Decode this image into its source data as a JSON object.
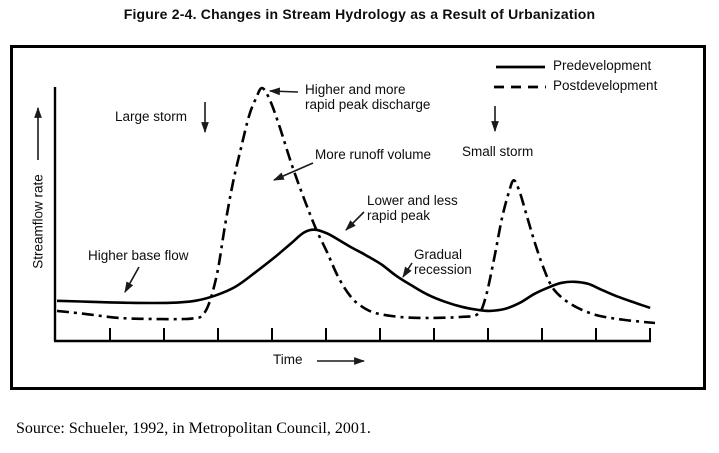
{
  "figure": {
    "title": "Figure 2-4. Changes in Stream Hydrology as a Result of Urbanization"
  },
  "source": "Source: Schueler, 1992, in Metropolitan Council, 2001.",
  "axes": {
    "y_label": "Streamflow rate",
    "x_label": "Time",
    "ticks_labeled": false
  },
  "legend": [
    {
      "label": "Predevelopment",
      "style": "solid",
      "color": "#000000"
    },
    {
      "label": "Postdevelopment",
      "style": "dashed",
      "color": "#000000"
    }
  ],
  "annotations": {
    "large_storm": "Large storm",
    "higher_peak_line1": "Higher and more",
    "higher_peak_line2": "rapid peak discharge",
    "more_runoff": "More runoff volume",
    "lower_peak_line1": "Lower and less",
    "lower_peak_line2": "rapid peak",
    "gradual_line1": "Gradual",
    "gradual_line2": "recession",
    "small_storm": "Small storm",
    "higher_base_flow": "Higher base flow"
  },
  "arrow_indicators": {
    "streamflow_axis_arrow": "up",
    "time_axis_arrow": "right",
    "large_storm_arrow": "down",
    "small_storm_arrow": "down",
    "peak_discharge_pointer": "left-to-dashed-peak",
    "more_runoff_pointer": "down-left",
    "lower_peak_pointer": "down-left",
    "gradual_recession_pointer": "down-left",
    "higher_base_flow_pointer": "down-left"
  },
  "chart_data": {
    "type": "line",
    "title": "Changes in Stream Hydrology as a Result of Urbanization",
    "xlabel": "Time",
    "ylabel": "Streamflow rate",
    "x_units": "relative time 0-100 (axis unlabeled)",
    "y_units": "relative streamflow 0-100 (axis unlabeled; 100 = postdevelopment large-storm peak)",
    "xlim": [
      0,
      100
    ],
    "ylim": [
      0,
      110
    ],
    "grid": false,
    "legend_position": "top-right",
    "x_tick_count": 11,
    "annotations": [
      "Large storm",
      "Small storm",
      "Higher and more rapid peak discharge",
      "More runoff volume",
      "Lower and less rapid peak",
      "Gradual recession",
      "Higher base flow"
    ],
    "series": [
      {
        "name": "Predevelopment",
        "style": "solid",
        "points": [
          [
            0,
            15.9
          ],
          [
            5.5,
            15.5
          ],
          [
            12.2,
            15.1
          ],
          [
            18.9,
            15.1
          ],
          [
            23.1,
            15.9
          ],
          [
            26.4,
            17.9
          ],
          [
            29.8,
            21.4
          ],
          [
            33.1,
            27.0
          ],
          [
            36.5,
            33.3
          ],
          [
            39.3,
            38.9
          ],
          [
            41.3,
            42.9
          ],
          [
            43.1,
            44.0
          ],
          [
            45.2,
            42.5
          ],
          [
            47.3,
            39.7
          ],
          [
            49.3,
            36.9
          ],
          [
            51.5,
            34.1
          ],
          [
            54.3,
            30.2
          ],
          [
            56.7,
            25.8
          ],
          [
            59.4,
            21.8
          ],
          [
            62.0,
            18.3
          ],
          [
            64.9,
            15.5
          ],
          [
            67.7,
            13.5
          ],
          [
            70.4,
            12.3
          ],
          [
            72.4,
            11.9
          ],
          [
            74.9,
            12.7
          ],
          [
            77.4,
            15.1
          ],
          [
            79.9,
            18.7
          ],
          [
            82.4,
            21.4
          ],
          [
            84.4,
            23.0
          ],
          [
            86.5,
            23.4
          ],
          [
            88.8,
            22.6
          ],
          [
            91.1,
            20.2
          ],
          [
            93.8,
            17.5
          ],
          [
            96.7,
            15.1
          ],
          [
            99.2,
            13.1
          ]
        ]
      },
      {
        "name": "Postdevelopment",
        "style": "dashed",
        "points": [
          [
            0,
            11.9
          ],
          [
            4.7,
            10.7
          ],
          [
            10.5,
            9.1
          ],
          [
            16.4,
            8.7
          ],
          [
            21.4,
            8.7
          ],
          [
            23.1,
            9.1
          ],
          [
            24.2,
            9.9
          ],
          [
            25.4,
            14.7
          ],
          [
            26.8,
            27.0
          ],
          [
            28.1,
            45.6
          ],
          [
            29.4,
            62.3
          ],
          [
            30.8,
            76.6
          ],
          [
            32.1,
            88.9
          ],
          [
            33.3,
            96.0
          ],
          [
            34.3,
            100
          ],
          [
            35.6,
            95.2
          ],
          [
            37.3,
            84.1
          ],
          [
            39.3,
            69.4
          ],
          [
            41.3,
            56.3
          ],
          [
            43.3,
            44.4
          ],
          [
            45.2,
            34.9
          ],
          [
            47.0,
            25.4
          ],
          [
            49.0,
            17.9
          ],
          [
            50.8,
            13.9
          ],
          [
            53.2,
            11.1
          ],
          [
            57.4,
            9.5
          ],
          [
            62.4,
            9.1
          ],
          [
            67.4,
            9.5
          ],
          [
            70.4,
            10.7
          ],
          [
            71.7,
            17.5
          ],
          [
            73.1,
            32.5
          ],
          [
            74.4,
            48.4
          ],
          [
            75.6,
            59.1
          ],
          [
            76.4,
            63.5
          ],
          [
            77.4,
            58.7
          ],
          [
            78.6,
            49.2
          ],
          [
            79.9,
            38.9
          ],
          [
            81.4,
            28.6
          ],
          [
            82.9,
            21.0
          ],
          [
            85.1,
            15.9
          ],
          [
            87.8,
            12.3
          ],
          [
            90.8,
            9.9
          ],
          [
            95.0,
            8.3
          ],
          [
            100,
            7.1
          ]
        ]
      }
    ]
  }
}
